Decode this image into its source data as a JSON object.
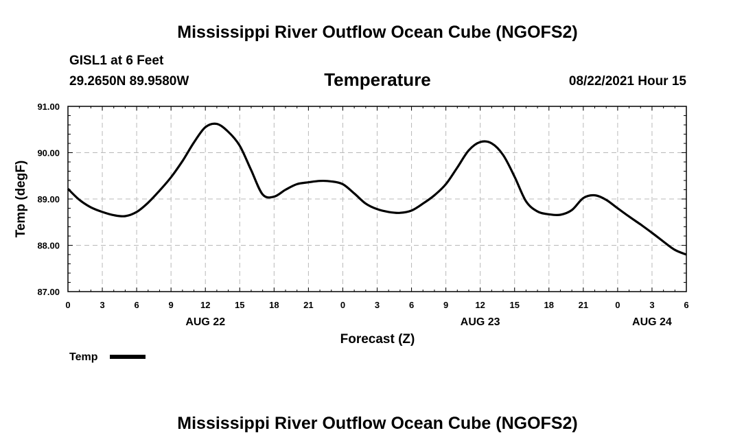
{
  "chart_data": {
    "type": "line",
    "title": "Mississippi River Outflow Ocean Cube (NGOFS2)",
    "footer_title": "Mississippi River Outflow Ocean Cube (NGOFS2)",
    "station_name": "GISL1 at 6 Feet",
    "station_coords": "29.2650N  89.9580W",
    "subtitle": "Temperature",
    "timestamp": "08/22/2021 Hour 15",
    "xlabel": "Forecast (Z)",
    "ylabel": "Temp (degF)",
    "ylim": [
      87,
      91
    ],
    "xlim": [
      0,
      54
    ],
    "y_ticks": [
      "87.00",
      "88.00",
      "89.00",
      "90.00",
      "91.00"
    ],
    "x_ticks": [
      "0",
      "3",
      "6",
      "9",
      "12",
      "15",
      "18",
      "21",
      "0",
      "3",
      "6",
      "9",
      "12",
      "15",
      "18",
      "21",
      "0",
      "3",
      "6"
    ],
    "date_labels": [
      {
        "label": "AUG 22",
        "hour": 12
      },
      {
        "label": "AUG 23",
        "hour": 36
      },
      {
        "label": "AUG 24",
        "hour": 51
      }
    ],
    "grid": true,
    "legend": {
      "label": "Temp",
      "placement": "bottom-left"
    },
    "series": [
      {
        "name": "Temp",
        "x": [
          0,
          1,
          2,
          3,
          4,
          5,
          6,
          7,
          8,
          9,
          10,
          11,
          12,
          13,
          14,
          15,
          16,
          17,
          18,
          19,
          20,
          21,
          22,
          23,
          24,
          25,
          26,
          27,
          28,
          29,
          30,
          31,
          32,
          33,
          34,
          35,
          36,
          37,
          38,
          39,
          40,
          41,
          42,
          43,
          44,
          45,
          46,
          47,
          48,
          49,
          50,
          51,
          52,
          53,
          54
        ],
        "values": [
          89.22,
          88.98,
          88.82,
          88.72,
          88.65,
          88.63,
          88.72,
          88.92,
          89.18,
          89.47,
          89.82,
          90.22,
          90.55,
          90.62,
          90.45,
          90.15,
          89.62,
          89.1,
          89.05,
          89.2,
          89.32,
          89.36,
          89.39,
          89.38,
          89.32,
          89.12,
          88.9,
          88.78,
          88.72,
          88.7,
          88.75,
          88.9,
          89.08,
          89.32,
          89.68,
          90.05,
          90.23,
          90.2,
          89.95,
          89.48,
          88.95,
          88.73,
          88.67,
          88.66,
          88.76,
          89.02,
          89.08,
          88.98,
          88.8,
          88.62,
          88.45,
          88.27,
          88.08,
          87.9,
          87.8
        ]
      }
    ]
  }
}
